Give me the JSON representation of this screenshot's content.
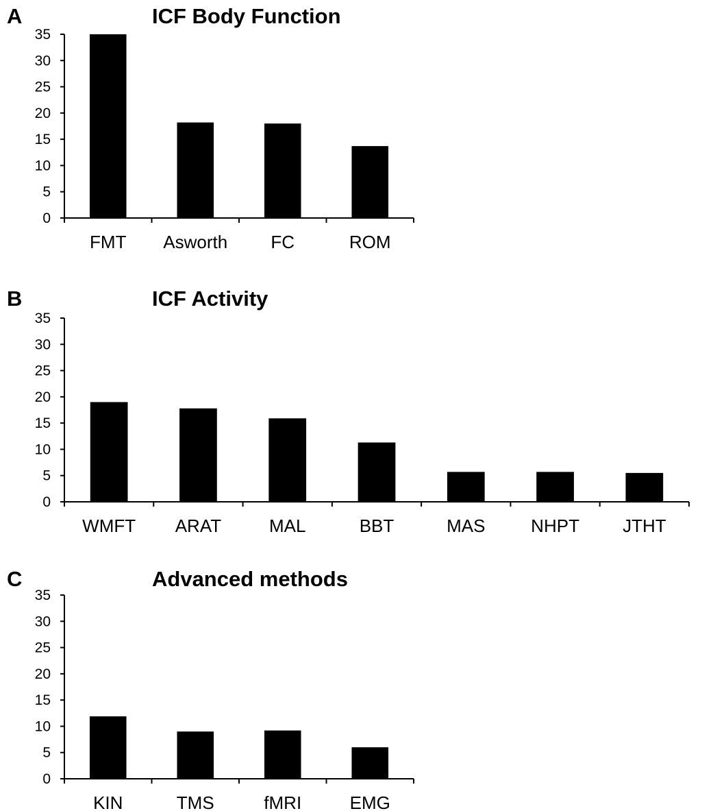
{
  "chart_data": [
    {
      "panel": "A",
      "type": "bar",
      "title": "ICF Body Function",
      "categories": [
        "FMT",
        "Asworth",
        "FC",
        "ROM"
      ],
      "values": [
        35,
        18.2,
        18,
        13.7
      ],
      "xlabel": "",
      "ylabel": "",
      "ylim": [
        0,
        35
      ],
      "yticks": [
        0,
        5,
        10,
        15,
        20,
        25,
        30,
        35
      ],
      "grid": false,
      "bar_color": "#000000"
    },
    {
      "panel": "B",
      "type": "bar",
      "title": "ICF Activity",
      "categories": [
        "WMFT",
        "ARAT",
        "MAL",
        "BBT",
        "MAS",
        "NHPT",
        "JTHT"
      ],
      "values": [
        19,
        17.8,
        15.9,
        11.3,
        5.7,
        5.7,
        5.5
      ],
      "xlabel": "",
      "ylabel": "",
      "ylim": [
        0,
        35
      ],
      "yticks": [
        0,
        5,
        10,
        15,
        20,
        25,
        30,
        35
      ],
      "grid": false,
      "bar_color": "#000000"
    },
    {
      "panel": "C",
      "type": "bar",
      "title": "Advanced methods",
      "categories": [
        "KIN",
        "TMS",
        "fMRI",
        "EMG"
      ],
      "values": [
        11.9,
        9,
        9.2,
        6
      ],
      "xlabel": "",
      "ylabel": "",
      "ylim": [
        0,
        35
      ],
      "yticks": [
        0,
        5,
        10,
        15,
        20,
        25,
        30,
        35
      ],
      "grid": false,
      "bar_color": "#000000"
    }
  ]
}
